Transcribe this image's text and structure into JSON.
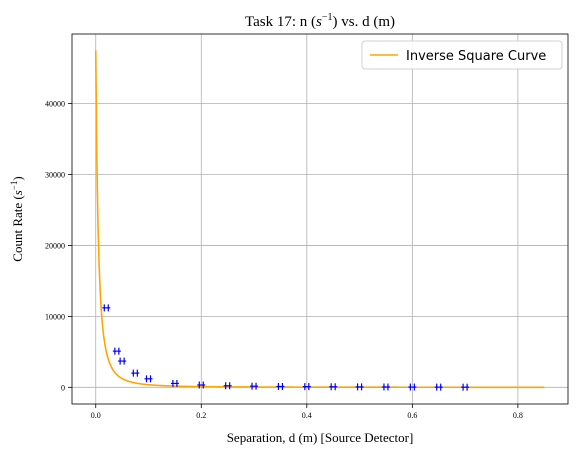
{
  "chart_data": {
    "type": "line",
    "title_prefix": "Task  17: n (",
    "title_unit": "s",
    "title_exp": "−1",
    "title_suffix": ") vs. d (m)",
    "xlabel": "Separation, d (m) [Source Detector]",
    "ylabel_prefix": "Count Rate (",
    "ylabel_unit": "s",
    "ylabel_exp": "−1",
    "ylabel_suffix": ")",
    "xlim": [
      -0.045,
      0.895
    ],
    "ylim": [
      -2350,
      49800
    ],
    "xticks": [
      0.0,
      0.2,
      0.4,
      0.6,
      0.8
    ],
    "xtick_labels": [
      "0.0",
      "0.2",
      "0.4",
      "0.6",
      "0.8"
    ],
    "yticks": [
      0,
      10000,
      20000,
      30000,
      40000
    ],
    "ytick_labels": [
      "0",
      "10000",
      "20000",
      "30000",
      "40000"
    ],
    "grid": true,
    "legend_position": "top-right",
    "series": [
      {
        "name": "Inverse Square Curve",
        "kind": "line",
        "color": "#ffa500",
        "x_range": [
          0.0,
          0.85
        ],
        "y_start": 47500
      },
      {
        "kind": "errorbar-points",
        "color": "#0000ff",
        "x": [
          0.02,
          0.04,
          0.05,
          0.075,
          0.1,
          0.15,
          0.2,
          0.25,
          0.3,
          0.35,
          0.4,
          0.45,
          0.5,
          0.55,
          0.6,
          0.65,
          0.7
        ],
        "y": [
          11200,
          5100,
          3700,
          2000,
          1200,
          550,
          330,
          220,
          160,
          120,
          100,
          80,
          60,
          50,
          40,
          30,
          25
        ]
      }
    ]
  }
}
